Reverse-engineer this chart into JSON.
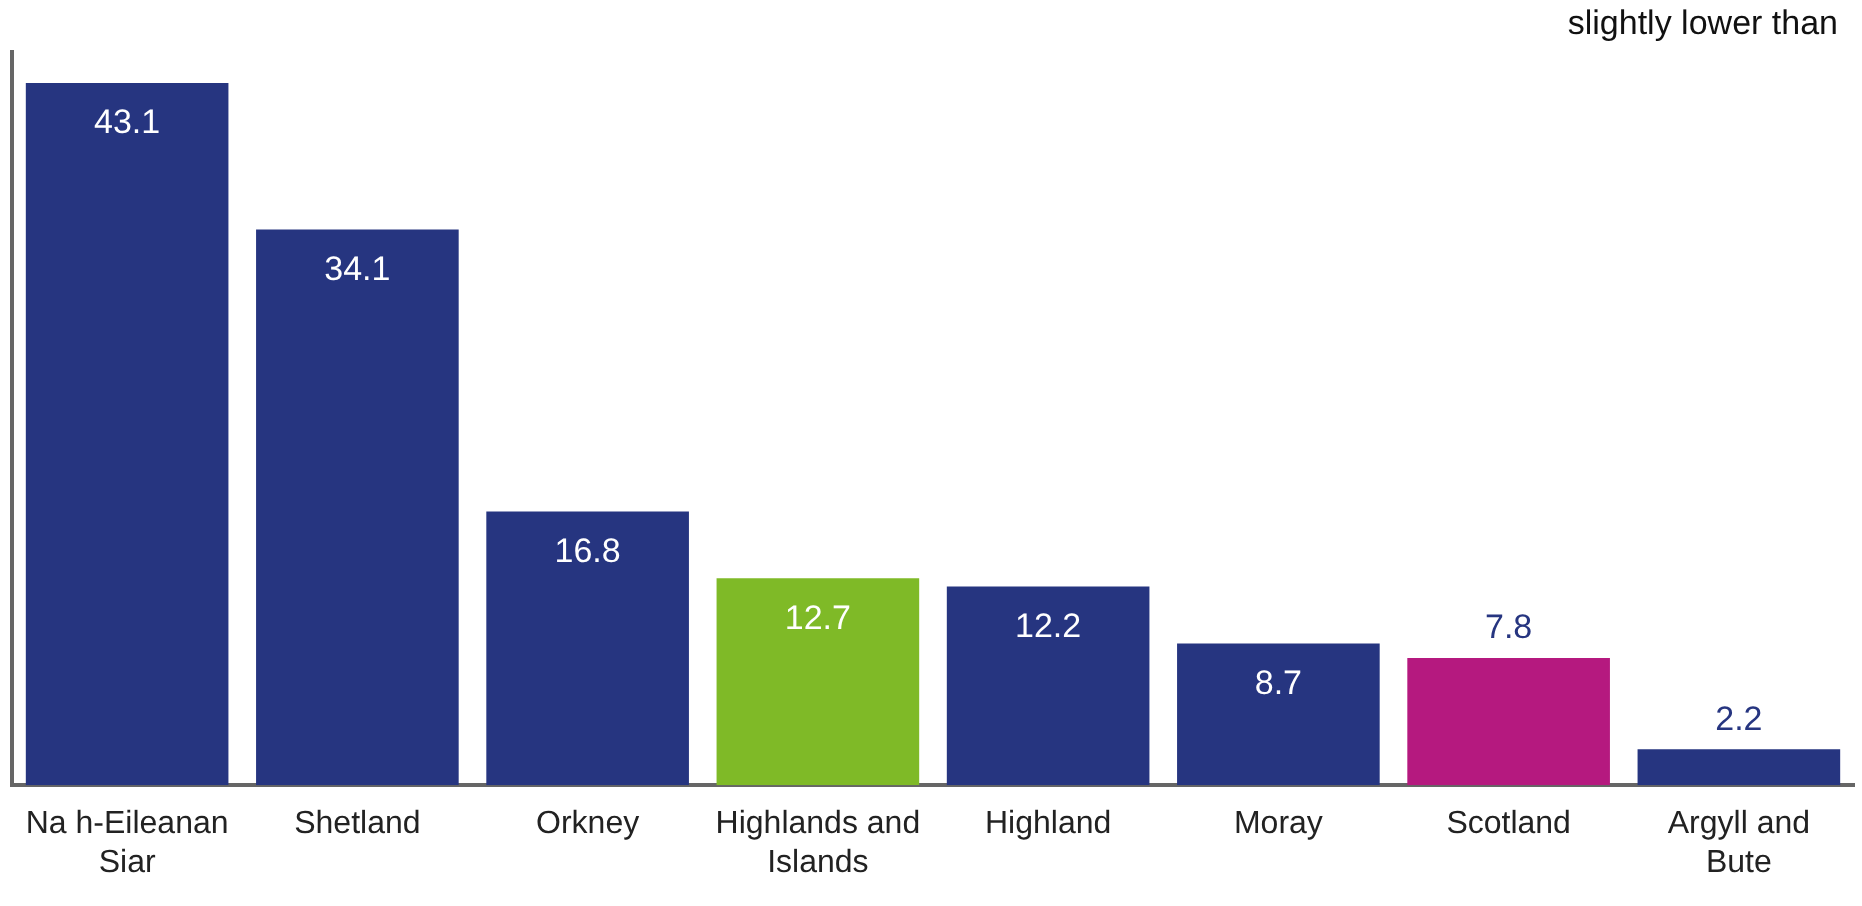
{
  "chart_data": {
    "type": "bar",
    "categories": [
      "Na h-Eileanan Siar",
      "Shetland",
      "Orkney",
      "Highlands and Islands",
      "Highland",
      "Moray",
      "Scotland",
      "Argyll and Bute"
    ],
    "values": [
      43.1,
      34.1,
      16.8,
      12.7,
      12.2,
      8.7,
      7.8,
      2.2
    ],
    "colors": [
      "#263580",
      "#263580",
      "#263580",
      "#7fba27",
      "#263580",
      "#263580",
      "#b5197f",
      "#263580"
    ],
    "data_labels": true,
    "grid": false,
    "legend": false,
    "annotations": [
      "slightly lower than"
    ]
  }
}
